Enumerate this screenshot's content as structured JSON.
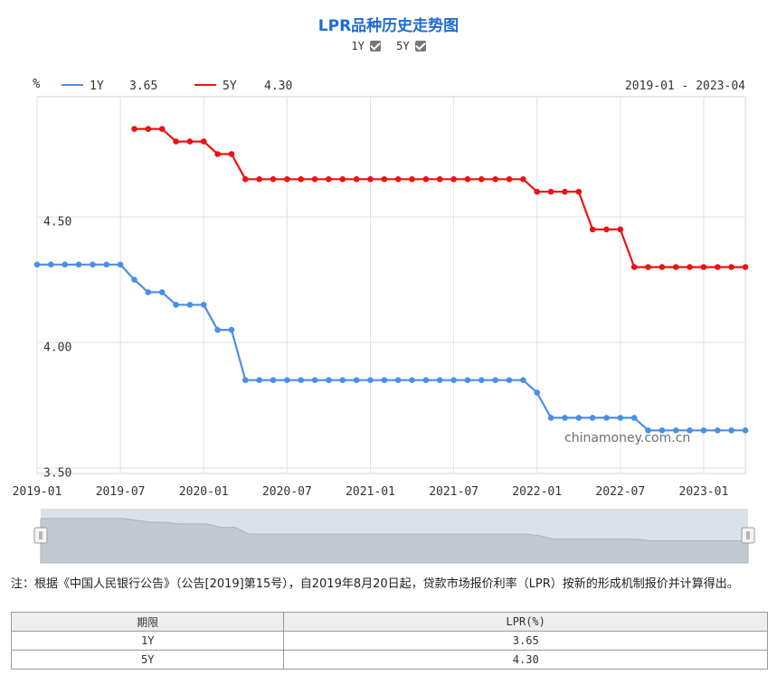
{
  "header": {
    "title": "LPR品种历史走势图",
    "toggle_1y": "1Y",
    "toggle_5y": "5Y"
  },
  "legend": {
    "unit": "%",
    "items": [
      {
        "name": "1Y",
        "value": "3.65",
        "color": "#4a8fe7"
      },
      {
        "name": "5Y",
        "value": "4.30",
        "color": "#ee1111"
      }
    ],
    "range_text": "2019-01 - 2023-04"
  },
  "watermark": "chinamoney.com.cn",
  "chart_data": {
    "type": "line",
    "x_ticks": [
      "2019-01",
      "2019-07",
      "2020-01",
      "2020-07",
      "2021-01",
      "2021-07",
      "2022-01",
      "2022-07",
      "2023-01"
    ],
    "y_ticks": [
      "3.50",
      "4.00",
      "4.50"
    ],
    "ylim": [
      3.5,
      5.0
    ],
    "grid": true,
    "series": [
      {
        "name": "1Y",
        "color": "#4a8fe7",
        "start_index": 0,
        "values": [
          4.31,
          4.31,
          4.31,
          4.31,
          4.31,
          4.31,
          4.31,
          4.25,
          4.2,
          4.2,
          4.15,
          4.15,
          4.15,
          4.05,
          4.05,
          3.85,
          3.85,
          3.85,
          3.85,
          3.85,
          3.85,
          3.85,
          3.85,
          3.85,
          3.85,
          3.85,
          3.85,
          3.85,
          3.85,
          3.85,
          3.85,
          3.85,
          3.85,
          3.85,
          3.85,
          3.85,
          3.8,
          3.7,
          3.7,
          3.7,
          3.7,
          3.7,
          3.7,
          3.7,
          3.65,
          3.65,
          3.65,
          3.65,
          3.65,
          3.65,
          3.65,
          3.65
        ]
      },
      {
        "name": "5Y",
        "color": "#ee1111",
        "start_index": 7,
        "values": [
          4.85,
          4.85,
          4.85,
          4.8,
          4.8,
          4.8,
          4.75,
          4.75,
          4.65,
          4.65,
          4.65,
          4.65,
          4.65,
          4.65,
          4.65,
          4.65,
          4.65,
          4.65,
          4.65,
          4.65,
          4.65,
          4.65,
          4.65,
          4.65,
          4.65,
          4.65,
          4.65,
          4.65,
          4.65,
          4.6,
          4.6,
          4.6,
          4.6,
          4.45,
          4.45,
          4.45,
          4.3,
          4.3,
          4.3,
          4.3,
          4.3,
          4.3,
          4.3,
          4.3,
          4.3
        ]
      }
    ]
  },
  "note": "注：根据《中国人民银行公告》（公告[2019]第15号），自2019年8月20日起，贷款市场报价利率（LPR）按新的形成机制报价并计算得出。",
  "table": {
    "headers": [
      "期限",
      "LPR(%)"
    ],
    "rows": [
      [
        "1Y",
        "3.65"
      ],
      [
        "5Y",
        "4.30"
      ]
    ]
  }
}
